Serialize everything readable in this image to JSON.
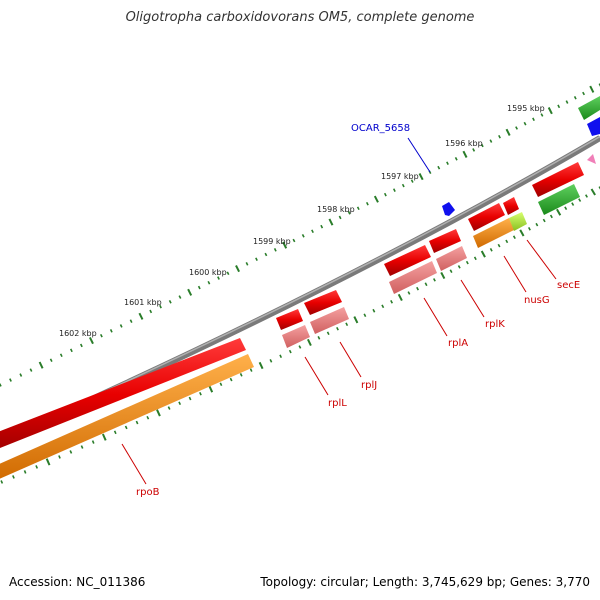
{
  "title": "Oligotropha carboxidovorans OM5, complete genome",
  "footer": {
    "accession": "Accession: NC_011386",
    "stats": "Topology: circular; Length: 3,745,629 bp; Genes: 3,770"
  },
  "colors": {
    "backbone": "#7a7a7a",
    "tick": "#2a7d2a",
    "label_line_red": "#cc0000",
    "label_line_blue": "#0000cc"
  },
  "kbp_labels": [
    "1595 kbp",
    "1596 kbp",
    "1597 kbp",
    "1598 kbp",
    "1599 kbp",
    "1600 kbp",
    "1601 kbp",
    "1602 kbp"
  ],
  "genes": [
    {
      "label": "OCAR_5658",
      "color": "#0000cc"
    },
    {
      "label": "secE",
      "color": "#cc0000"
    },
    {
      "label": "nusG",
      "color": "#cc0000"
    },
    {
      "label": "rplK",
      "color": "#cc0000"
    },
    {
      "label": "rplA",
      "color": "#cc0000"
    },
    {
      "label": "rplJ",
      "color": "#cc0000"
    },
    {
      "label": "rplL",
      "color": "#cc0000"
    },
    {
      "label": "rpoB",
      "color": "#cc0000"
    }
  ]
}
